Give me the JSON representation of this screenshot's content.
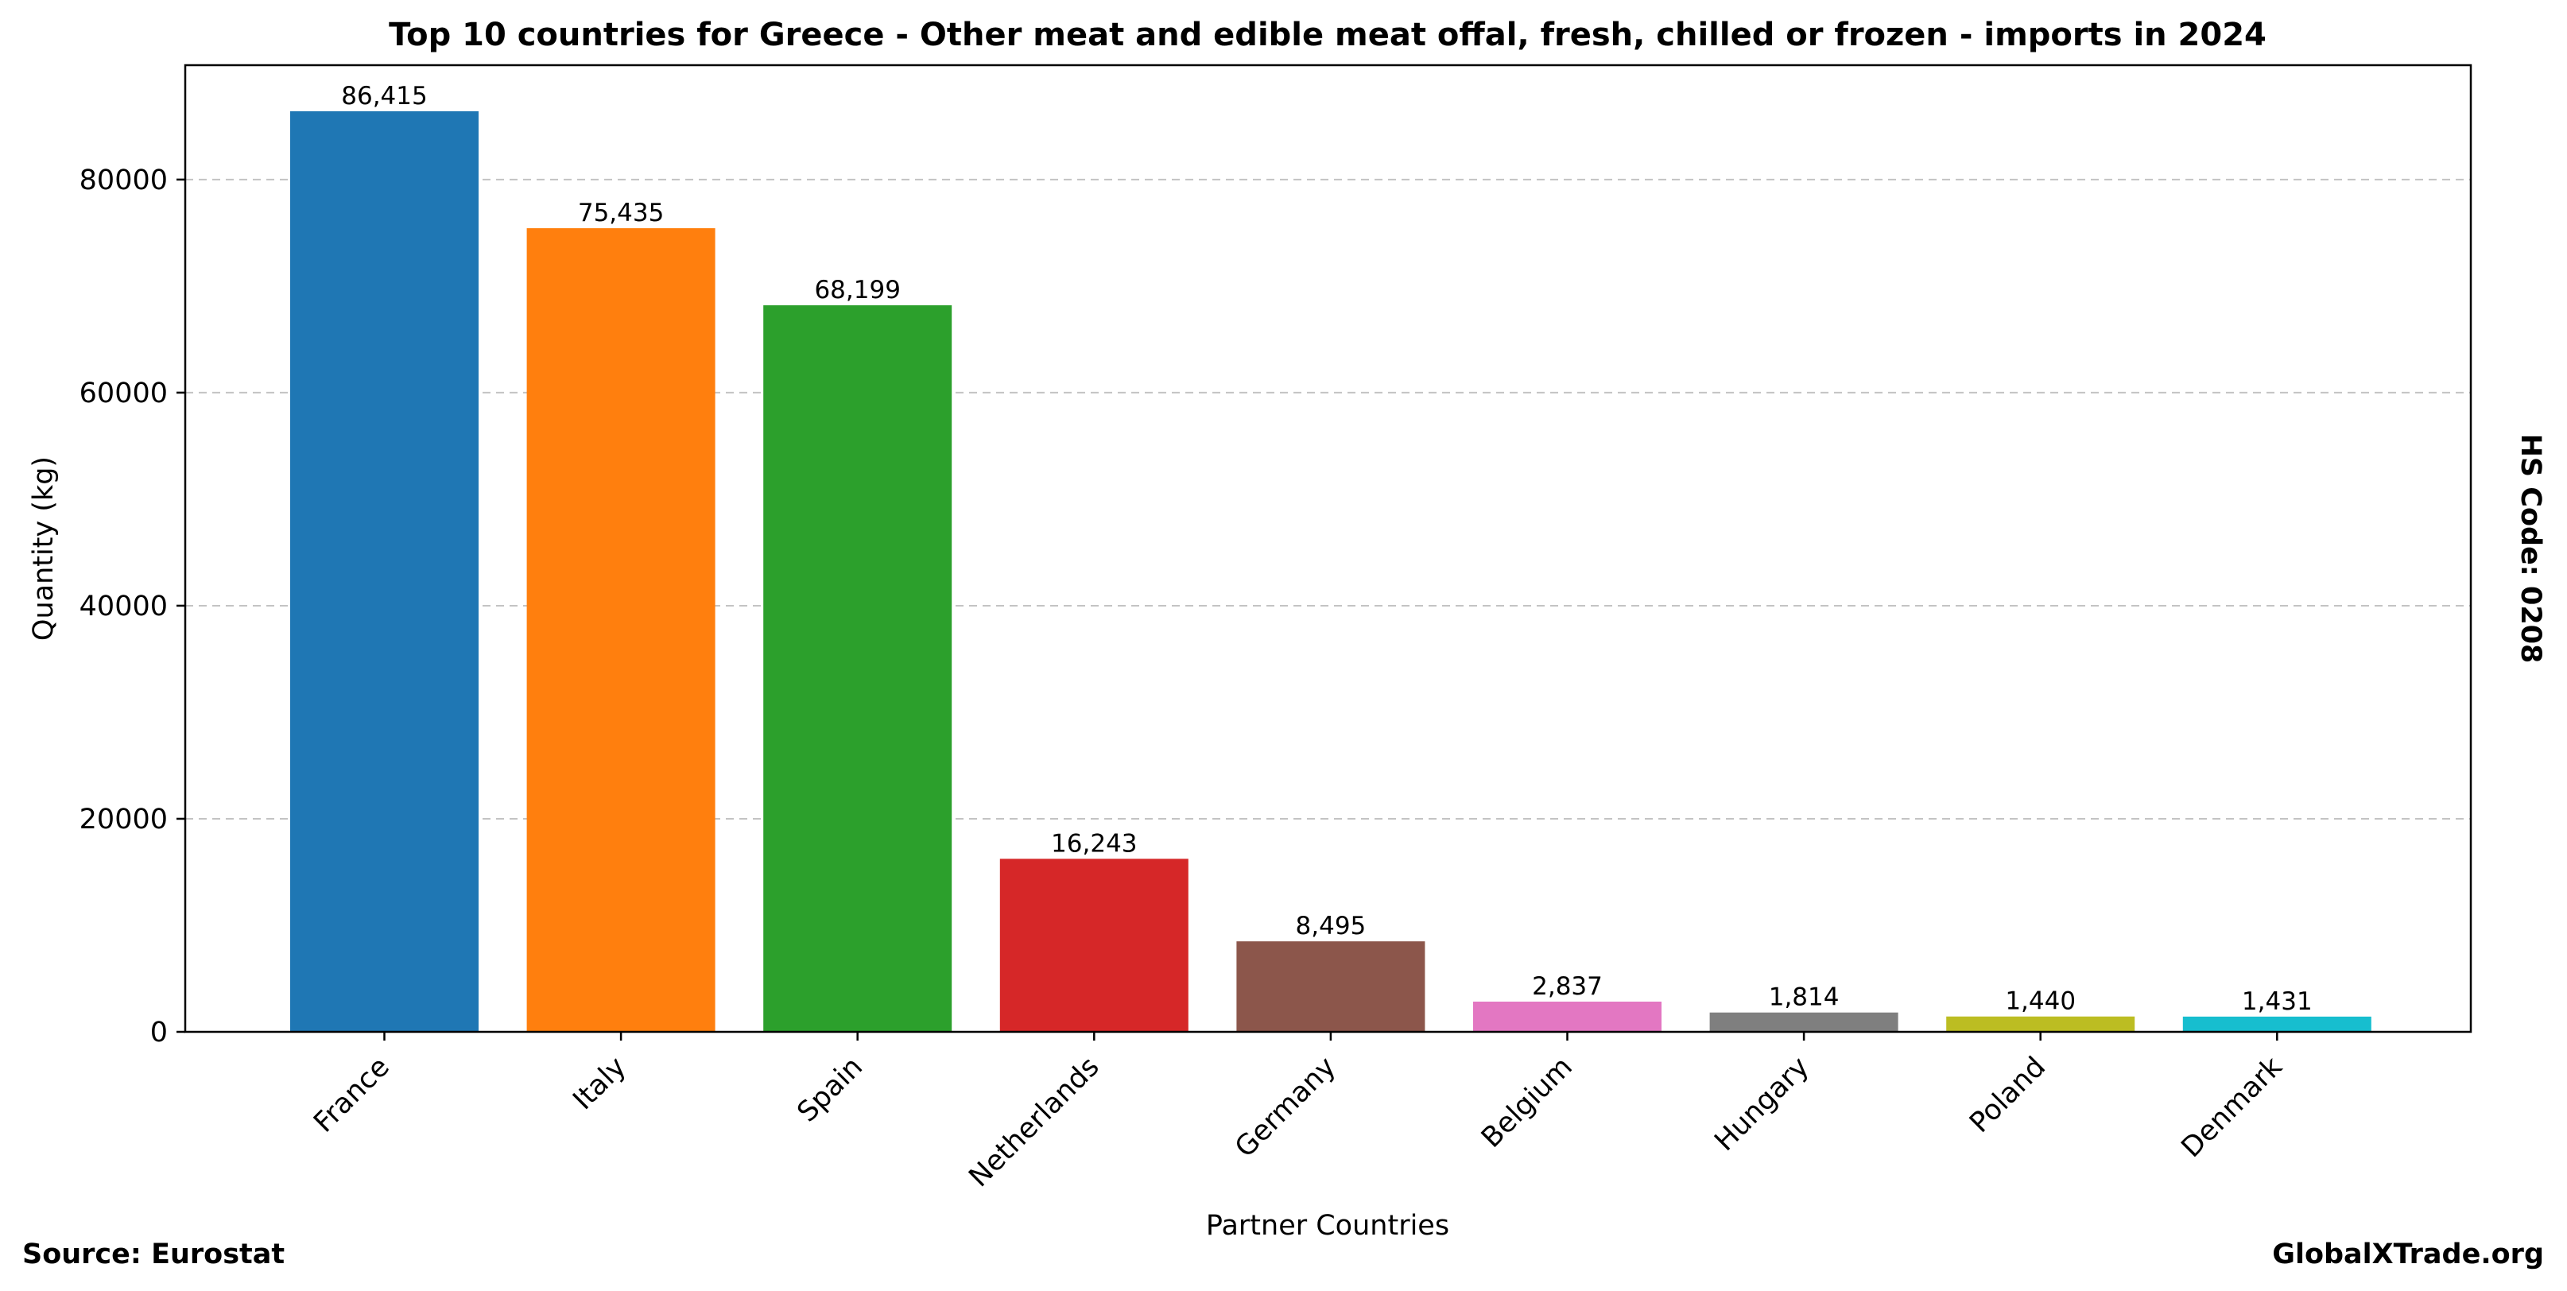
{
  "chart_data": {
    "type": "bar",
    "title": "Top 10 countries for Greece - Other meat and edible meat offal, fresh, chilled or frozen - imports in 2024",
    "xlabel": "Partner Countries",
    "ylabel": "Quantity (kg)",
    "categories": [
      "France",
      "Italy",
      "Spain",
      "Netherlands",
      "Germany",
      "Belgium",
      "Hungary",
      "Poland",
      "Denmark"
    ],
    "values": [
      86415,
      75435,
      68199,
      16243,
      8495,
      2837,
      1814,
      1440,
      1431
    ],
    "value_labels": [
      "86,415",
      "75,435",
      "68,199",
      "16,243",
      "8,495",
      "2,837",
      "1,814",
      "1,440",
      "1,431"
    ],
    "colors": [
      "#1f77b4",
      "#ff7f0e",
      "#2ca02c",
      "#d62728",
      "#8c564b",
      "#e377c2",
      "#7f7f7f",
      "#bcbd22",
      "#17becf"
    ],
    "ylim": [
      0,
      90737
    ],
    "yticks": [
      0,
      20000,
      40000,
      60000,
      80000
    ],
    "ytick_labels": [
      "0",
      "20000",
      "40000",
      "60000",
      "80000"
    ],
    "grid": "y-dashed",
    "legend": "none"
  },
  "side_label": "HS Code: 0208",
  "source": "Source: Eurostat",
  "brand": "GlobalXTrade.org"
}
